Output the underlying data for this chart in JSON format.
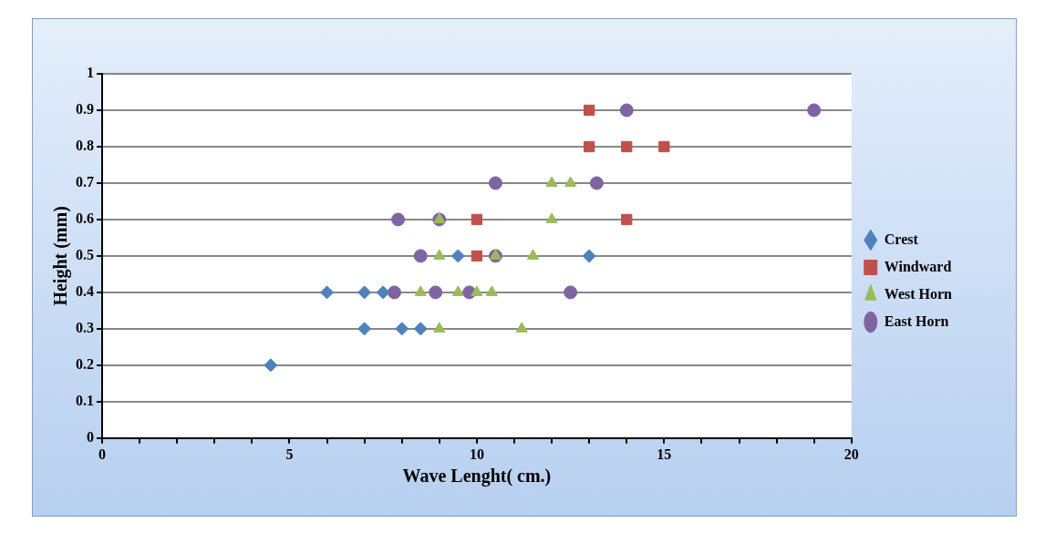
{
  "chart_data": {
    "type": "scatter",
    "xlabel": "Wave Lenght( cm.)",
    "ylabel": "Height (mm)",
    "series": [
      {
        "name": "Crest",
        "color": "#4f81bd",
        "marker": "diamond",
        "x": [
          4.5,
          7,
          8,
          8.5,
          6,
          7,
          7.5,
          9.5,
          13
        ],
        "values": [
          0.2,
          0.3,
          0.3,
          0.3,
          0.4,
          0.4,
          0.4,
          0.5,
          0.5
        ]
      },
      {
        "name": "Windward",
        "color": "#c0504d",
        "marker": "square",
        "x": [
          13,
          13,
          14,
          15,
          10,
          14,
          10
        ],
        "values": [
          0.9,
          0.8,
          0.8,
          0.8,
          0.6,
          0.6,
          0.5
        ]
      },
      {
        "name": "West Horn",
        "color": "#9bbb59",
        "marker": "triangle",
        "x": [
          9,
          11.2,
          8.5,
          9.5,
          10,
          10.4,
          9,
          10.5,
          11.5,
          12,
          9,
          12,
          12.5
        ],
        "values": [
          0.3,
          0.3,
          0.4,
          0.4,
          0.4,
          0.4,
          0.5,
          0.5,
          0.5,
          0.6,
          0.6,
          0.7,
          0.7
        ]
      },
      {
        "name": "East Horn",
        "color": "#8064a2",
        "marker": "circle",
        "x": [
          14,
          19,
          10.5,
          13.2,
          7.9,
          9,
          8.5,
          10.5,
          7.8,
          8.9,
          9.8,
          12.5
        ],
        "values": [
          0.9,
          0.9,
          0.7,
          0.7,
          0.6,
          0.6,
          0.5,
          0.5,
          0.4,
          0.4,
          0.4,
          0.4
        ]
      }
    ],
    "xlim": [
      0,
      20
    ],
    "xticks": [
      0,
      {
        "value": 1,
        "label": null
      },
      {
        "value": 2,
        "label": null
      },
      {
        "value": 3,
        "label": null
      },
      {
        "value": 4,
        "label": null
      },
      5,
      {
        "value": 6,
        "label": null
      },
      {
        "value": 7,
        "label": null
      },
      {
        "value": 8,
        "label": null
      },
      {
        "value": 9,
        "label": null
      },
      10,
      {
        "value": 11,
        "label": null
      },
      {
        "value": 12,
        "label": null
      },
      {
        "value": 13,
        "label": null
      },
      {
        "value": 14,
        "label": null
      },
      15,
      {
        "value": 16,
        "label": null
      },
      {
        "value": 17,
        "label": null
      },
      {
        "value": 18,
        "label": null
      },
      {
        "value": 19,
        "label": null
      },
      20
    ],
    "ylim": [
      0,
      1
    ],
    "yticks": [
      0,
      0.1,
      0.2,
      0.3,
      0.4,
      0.5,
      0.6,
      0.7,
      0.8,
      0.9,
      1
    ],
    "grid": "y",
    "legend": "right"
  }
}
